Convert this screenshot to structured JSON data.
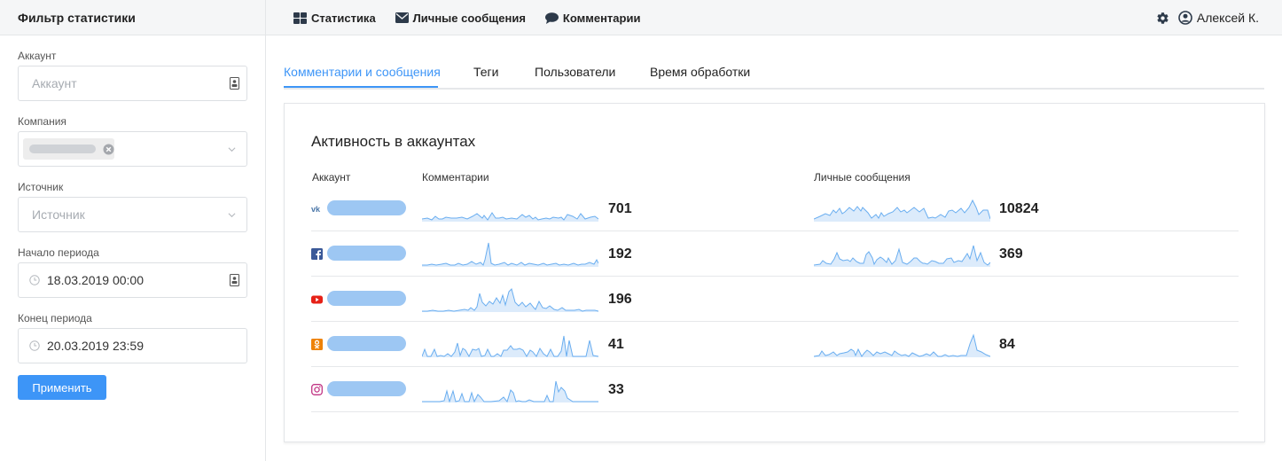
{
  "sidebar": {
    "title": "Фильтр статистики",
    "fields": {
      "account_label": "Аккаунт",
      "account_placeholder": "Аккаунт",
      "company_label": "Компания",
      "source_label": "Источник",
      "source_placeholder": "Источник",
      "start_label": "Начало периода",
      "start_value": "18.03.2019 00:00",
      "end_label": "Конец периода",
      "end_value": "20.03.2019 23:59"
    },
    "apply_label": "Применить"
  },
  "nav": {
    "stats": "Статистика",
    "messages": "Личные сообщения",
    "comments": "Комментарии"
  },
  "user": {
    "name": "Алексей К."
  },
  "tabs": [
    "Комментарии и сообщения",
    "Теги",
    "Пользователи",
    "Время обработки"
  ],
  "card": {
    "title": "Активность в аккаунтах",
    "col_account": "Аккаунт",
    "col_comments": "Комментарии",
    "col_messages": "Личные сообщения"
  },
  "rows": [
    {
      "network": "vk",
      "comments_total": "701",
      "messages_total": "10824"
    },
    {
      "network": "facebook",
      "comments_total": "192",
      "messages_total": "369"
    },
    {
      "network": "youtube",
      "comments_total": "196",
      "messages_total": ""
    },
    {
      "network": "odnoklassniki",
      "comments_total": "41",
      "messages_total": "84"
    },
    {
      "network": "instagram",
      "comments_total": "33",
      "messages_total": ""
    }
  ],
  "colors": {
    "accent": "#3d95f7",
    "spark_line": "#6aaef0",
    "spark_fill": "#dcebfb"
  }
}
